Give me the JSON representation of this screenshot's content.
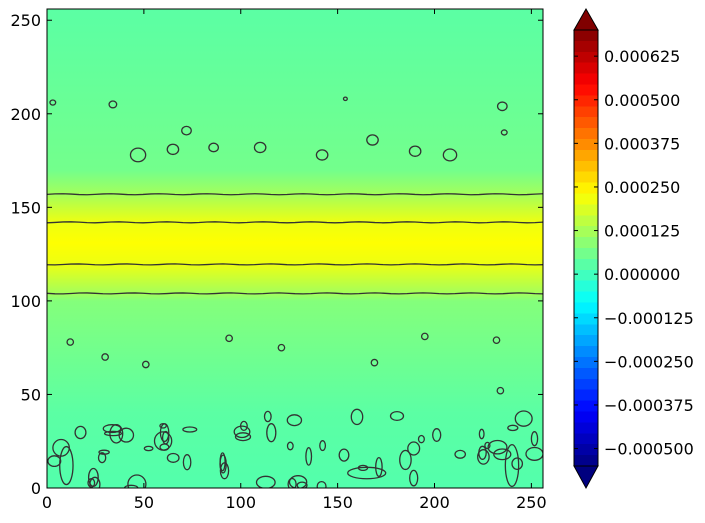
{
  "chart_data": {
    "type": "heatmap",
    "title": "",
    "xlabel": "",
    "ylabel": "",
    "xlim": [
      0,
      256
    ],
    "ylim": [
      0,
      256
    ],
    "x_ticks": [
      {
        "value": 0,
        "label": "0"
      },
      {
        "value": 50,
        "label": "50"
      },
      {
        "value": 100,
        "label": "100"
      },
      {
        "value": 150,
        "label": "150"
      },
      {
        "value": 200,
        "label": "200"
      },
      {
        "value": 250,
        "label": "250"
      }
    ],
    "y_ticks": [
      {
        "value": 0,
        "label": "0"
      },
      {
        "value": 50,
        "label": "50"
      },
      {
        "value": 100,
        "label": "100"
      },
      {
        "value": 150,
        "label": "150"
      },
      {
        "value": 200,
        "label": "200"
      },
      {
        "value": 250,
        "label": "250"
      }
    ],
    "colormap": "jet",
    "colorbar": {
      "range": [
        -0.00055,
        0.0007
      ],
      "extend": "both",
      "ticks": [
        {
          "value": 0.000625,
          "label": "0.000625"
        },
        {
          "value": 0.0005,
          "label": "0.000500"
        },
        {
          "value": 0.000375,
          "label": "0.000375"
        },
        {
          "value": 0.00025,
          "label": "0.000250"
        },
        {
          "value": 0.000125,
          "label": "0.000125"
        },
        {
          "value": 0.0,
          "label": "0.000000"
        },
        {
          "value": -0.000125,
          "label": "−0.000125"
        },
        {
          "value": -0.00025,
          "label": "−0.000250"
        },
        {
          "value": -0.000375,
          "label": "−0.000375"
        },
        {
          "value": -0.0005,
          "label": "−0.000500"
        }
      ]
    },
    "field_profile": {
      "description_y": [
        0,
        40,
        100,
        104,
        120,
        131,
        142,
        157,
        170,
        256
      ],
      "value": [
        2e-05,
        3e-05,
        8e-05,
        0.00012,
        0.00021,
        0.00023,
        0.00021,
        0.00012,
        6e-05,
        3e-05
      ]
    },
    "contour_lines_y": [
      104,
      119.5,
      142,
      157
    ],
    "blobs_high": [
      {
        "x": 12,
        "y": 78
      },
      {
        "x": 30,
        "y": 70
      },
      {
        "x": 51,
        "y": 66
      },
      {
        "x": 94,
        "y": 80
      },
      {
        "x": 121,
        "y": 75
      },
      {
        "x": 169,
        "y": 67
      },
      {
        "x": 195,
        "y": 81
      },
      {
        "x": 232,
        "y": 79
      },
      {
        "x": 234,
        "y": 52
      }
    ],
    "blobs_low": [
      {
        "x": 47,
        "y": 178,
        "r": 4
      },
      {
        "x": 65,
        "y": 181,
        "r": 3
      },
      {
        "x": 72,
        "y": 191,
        "r": 2.5
      },
      {
        "x": 86,
        "y": 182,
        "r": 2.5
      },
      {
        "x": 110,
        "y": 182,
        "r": 3
      },
      {
        "x": 142,
        "y": 178,
        "r": 3
      },
      {
        "x": 168,
        "y": 186,
        "r": 3
      },
      {
        "x": 190,
        "y": 180,
        "r": 3
      },
      {
        "x": 208,
        "y": 178,
        "r": 3.5
      },
      {
        "x": 235,
        "y": 204,
        "r": 2.5
      },
      {
        "x": 34,
        "y": 205,
        "r": 2
      },
      {
        "x": 236,
        "y": 190,
        "r": 1.5
      },
      {
        "x": 3,
        "y": 206,
        "r": 1.5
      },
      {
        "x": 154,
        "y": 208,
        "r": 1
      }
    ]
  }
}
